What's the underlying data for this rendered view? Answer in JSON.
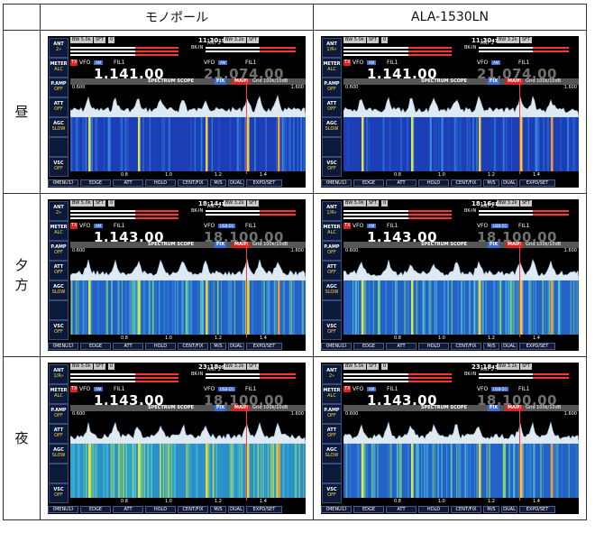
{
  "table": {
    "headers": [
      "モノポール",
      "ALA-1530LN"
    ],
    "rows": [
      {
        "label": "昼",
        "label_chars": [
          "昼"
        ]
      },
      {
        "label": "夕方",
        "label_chars": [
          "夕",
          "方"
        ]
      },
      {
        "label": "夜",
        "label_chars": [
          "夜"
        ]
      }
    ]
  },
  "screens": [
    {
      "ant": "2»",
      "time": "11:30",
      "sec": "15",
      "freq": "1.141.00",
      "sub": "21.074.00",
      "sub_mode": "AM",
      "wf": "sparse"
    },
    {
      "ant": "1/R»",
      "time": "11:30",
      "sec": "47",
      "freq": "1.141.00",
      "sub": "21.074.00",
      "sub_mode": "AM",
      "wf": "sparse"
    },
    {
      "ant": "2»",
      "time": "18:14",
      "sec": "41",
      "freq": "1.143.00",
      "sub": "18.100.00",
      "sub_mode": "USB-D1",
      "wf": "medium"
    },
    {
      "ant": "1/R»",
      "time": "18:16",
      "sec": "01",
      "freq": "1.143.00",
      "sub": "18.100.00",
      "sub_mode": "USB-D1",
      "wf": "medium"
    },
    {
      "ant": "1/R»",
      "time": "23:18",
      "sec": "09",
      "freq": "1.143.00",
      "sub": "18.100.00",
      "sub_mode": "USB-D1",
      "wf": "dense"
    },
    {
      "ant": "2»",
      "time": "23:18",
      "sec": "43",
      "freq": "1.143.00",
      "sub": "18.100.00",
      "sub_mode": "USB-D1",
      "wf": "medium"
    }
  ],
  "common": {
    "bw": "BW 5.0k",
    "sft": "SFT",
    "sft_val": "0",
    "bw2": "BW 3.2k",
    "sft2": "SFT",
    "bkin": "BK-IN",
    "ant_sub": "ANT 2",
    "vfo": "VFO",
    "fil": "FIL1",
    "tx": "TX",
    "mode": "AM",
    "scope_title": "SPECTRUM SCOPE",
    "fix": "FIX",
    "main": "MAIN",
    "grid": "Grid 100k/10dB",
    "scale_left": "0.600",
    "scale_right": "1.600",
    "axis_ticks": [
      "0.8",
      "1.0",
      "1.2",
      "1.4"
    ],
    "left_buttons": [
      {
        "title": "ANT",
        "value": ""
      },
      {
        "title": "METER",
        "value": "ALC"
      },
      {
        "title": "P.AMP",
        "value": "OFF"
      },
      {
        "title": "ATT",
        "value": "OFF"
      },
      {
        "title": "AGC",
        "value": "SLOW"
      },
      {
        "title": "",
        "value": ""
      },
      {
        "title": "VSC",
        "value": "OFF"
      }
    ],
    "bottom_buttons": [
      "《MENU1》",
      "EDGE",
      "ATT",
      "HOLD",
      "CENT/FIX",
      "M/S",
      "DUAL",
      "EXPD/SET"
    ]
  },
  "colors": {
    "accent": "#3a6fd8",
    "marker": "#ff3b3b",
    "scope_bg": "#000000"
  }
}
